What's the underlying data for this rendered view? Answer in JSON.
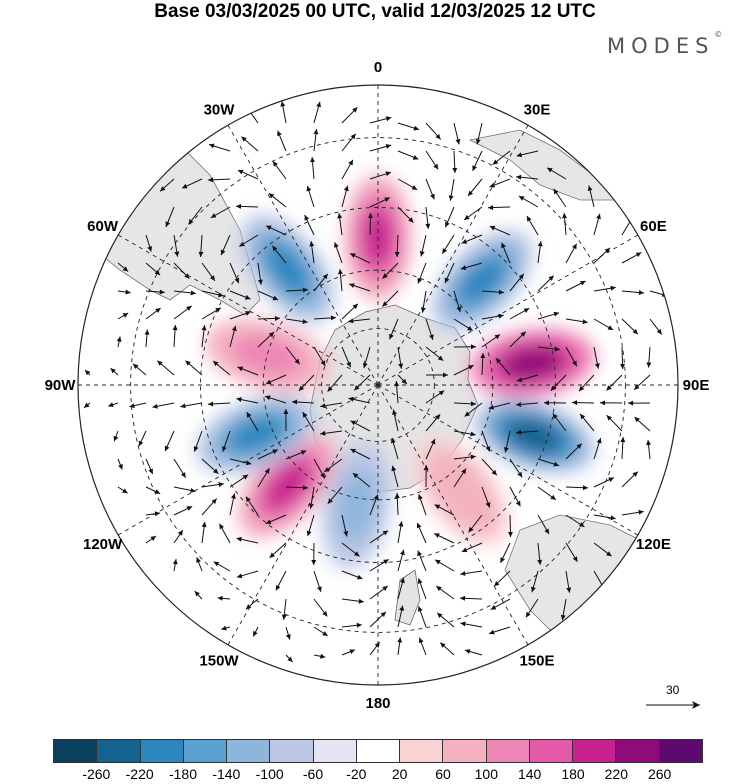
{
  "title": "Base 03/03/2025 00 UTC, valid 12/03/2025 12 UTC",
  "brand": {
    "name": "MODES",
    "mark": "©"
  },
  "lon_labels": [
    {
      "text": "0",
      "lon": 0
    },
    {
      "text": "30E",
      "lon": 30
    },
    {
      "text": "60E",
      "lon": 60
    },
    {
      "text": "90E",
      "lon": 90
    },
    {
      "text": "120E",
      "lon": 120
    },
    {
      "text": "150E",
      "lon": 150
    },
    {
      "text": "180",
      "lon": 180
    },
    {
      "text": "150W",
      "lon": -150
    },
    {
      "text": "120W",
      "lon": -120
    },
    {
      "text": "90W",
      "lon": -90
    },
    {
      "text": "60W",
      "lon": -60
    },
    {
      "text": "30W",
      "lon": -30
    }
  ],
  "reference_vector": "30",
  "colorbar": {
    "colors": [
      "#0b3f5e",
      "#13628f",
      "#2c86bf",
      "#5aa1cf",
      "#8eb5dc",
      "#bcc7e6",
      "#e4e4f2",
      "#ffffff",
      "#f9d3d3",
      "#f4b2c0",
      "#ee86b6",
      "#e25aa8",
      "#c82290",
      "#8f0b79",
      "#5c0a6f"
    ],
    "tick_labels": [
      "-260",
      "-220",
      "-180",
      "-140",
      "-100",
      "-60",
      "-20",
      "20",
      "60",
      "100",
      "140",
      "180",
      "220",
      "260"
    ]
  },
  "anomalies": [
    {
      "lon": 0,
      "lat": -52,
      "value": 200
    },
    {
      "lon": 45,
      "lat": -52,
      "value": -200
    },
    {
      "lon": 82,
      "lat": -50,
      "value": 240
    },
    {
      "lon": 108,
      "lat": -48,
      "value": -220
    },
    {
      "lon": 142,
      "lat": -55,
      "value": 90
    },
    {
      "lon": -170,
      "lat": -58,
      "value": -120
    },
    {
      "lon": -138,
      "lat": -55,
      "value": 200
    },
    {
      "lon": -112,
      "lat": -56,
      "value": -190
    },
    {
      "lon": -75,
      "lat": -60,
      "value": 140
    },
    {
      "lon": -38,
      "lat": -52,
      "value": -200
    }
  ]
}
